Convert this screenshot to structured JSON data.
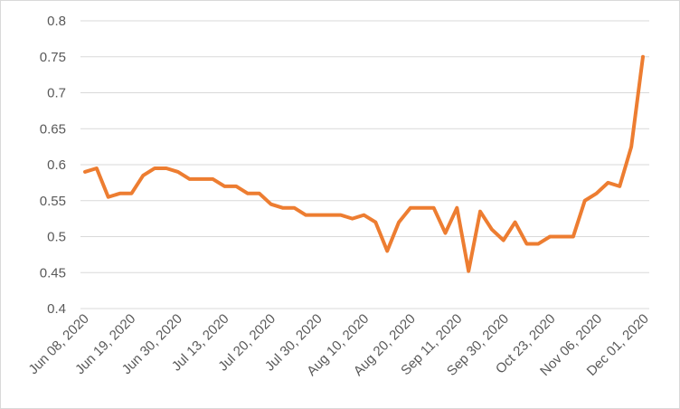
{
  "chart_data": {
    "type": "line",
    "title": "",
    "xlabel": "",
    "ylabel": "",
    "ylim": [
      0.4,
      0.8
    ],
    "yticks": [
      "0.4",
      "0.45",
      "0.5",
      "0.55",
      "0.6",
      "0.65",
      "0.7",
      "0.75",
      "0.8"
    ],
    "ytick_values": [
      0.4,
      0.45,
      0.5,
      0.55,
      0.6,
      0.65,
      0.7,
      0.75,
      0.8
    ],
    "xtick_labels": [
      "Jun 08, 2020",
      "Jun 19, 2020",
      "Jun 30, 2020",
      "Jul 13, 2020",
      "Jul 20, 2020",
      "Jul 30, 2020",
      "Aug 10, 2020",
      "Aug 20, 2020",
      "Sep 11, 2020",
      "Sep 30, 2020",
      "Oct 23, 2020",
      "Nov 06, 2020",
      "Dec 01, 2020"
    ],
    "grid": true,
    "legend": "none",
    "series": [
      {
        "color": "#ed7d31",
        "values": [
          0.59,
          0.595,
          0.555,
          0.56,
          0.56,
          0.585,
          0.595,
          0.595,
          0.59,
          0.58,
          0.58,
          0.58,
          0.57,
          0.57,
          0.56,
          0.56,
          0.545,
          0.54,
          0.54,
          0.53,
          0.53,
          0.53,
          0.53,
          0.525,
          0.53,
          0.52,
          0.48,
          0.52,
          0.54,
          0.54,
          0.54,
          0.505,
          0.54,
          0.452,
          0.535,
          0.51,
          0.495,
          0.52,
          0.49,
          0.49,
          0.5,
          0.5,
          0.5,
          0.55,
          0.56,
          0.575,
          0.57,
          0.625,
          0.75
        ]
      }
    ]
  }
}
